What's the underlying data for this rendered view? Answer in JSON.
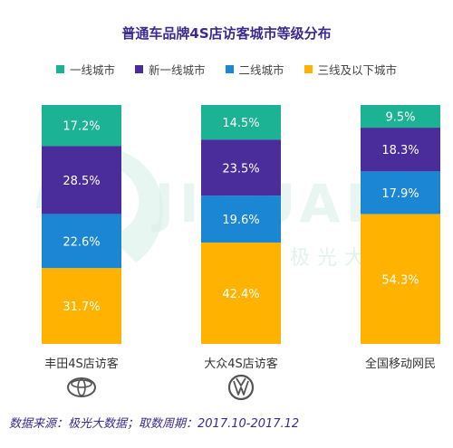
{
  "chart_data": {
    "type": "bar",
    "stacked": true,
    "percent": true,
    "title": "普通车品牌4S店访客城市等级分布",
    "categories": [
      "丰田4S店访客",
      "大众4S店访客",
      "全国移动网民"
    ],
    "series": [
      {
        "name": "一线城市",
        "color": "#1cb394",
        "values": [
          17.2,
          14.5,
          9.5
        ]
      },
      {
        "name": "新一线城市",
        "color": "#4a2d9a",
        "values": [
          28.5,
          23.5,
          18.3
        ]
      },
      {
        "name": "二线城市",
        "color": "#1a86d4",
        "values": [
          22.6,
          19.6,
          17.9
        ]
      },
      {
        "name": "三线及以下城市",
        "color": "#ffb300",
        "values": [
          31.7,
          42.4,
          54.3
        ]
      }
    ],
    "ylim": [
      0,
      100
    ],
    "legend_position": "top",
    "grid": false
  },
  "brand_icons": [
    "toyota-logo-icon",
    "volkswagen-logo-icon",
    null
  ],
  "watermark": {
    "text_latin": "JIGUANG",
    "text_cn": "极光大数据",
    "color": "#d6eee6"
  },
  "footer": {
    "source": "数据来源：极光大数据；取数周期：2017.10-2017.12"
  }
}
